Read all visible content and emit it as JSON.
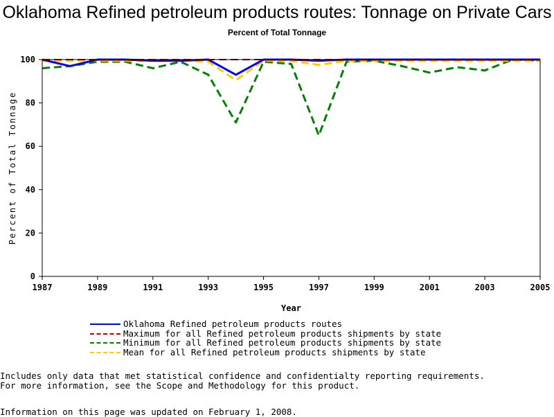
{
  "chart_data": {
    "type": "line",
    "title": "Oklahoma Refined petroleum products routes: Tonnage on Private Cars",
    "subtitle": "Percent of Total Tonnage",
    "xlabel": "Year",
    "ylabel": "Percent of Total Tonnage",
    "xlim": [
      1987,
      2005
    ],
    "ylim": [
      0,
      100
    ],
    "x_ticks": [
      "1987",
      "1989",
      "1991",
      "1993",
      "1995",
      "1997",
      "1999",
      "2001",
      "2003",
      "2005"
    ],
    "y_ticks": [
      "0",
      "20",
      "40",
      "60",
      "80",
      "100"
    ],
    "grid": false,
    "legend_position": "bottom",
    "x": [
      1987,
      1988,
      1989,
      1990,
      1991,
      1992,
      1993,
      1994,
      1995,
      1996,
      1997,
      1998,
      1999,
      2000,
      2001,
      2002,
      2003,
      2004,
      2005
    ],
    "series": [
      {
        "name": "Oklahoma Refined petroleum products routes",
        "color": "#0000ff",
        "dash": "solid",
        "values": [
          100,
          97,
          100,
          100,
          99.5,
          99.5,
          100,
          93,
          100,
          100,
          99.5,
          100,
          100,
          100,
          100,
          100,
          100,
          100,
          100
        ]
      },
      {
        "name": "Maximum for all Refined petroleum products shipments by state",
        "color": "#cc0000",
        "dash": "dashed",
        "values": [
          100,
          100,
          100,
          100,
          100,
          100,
          100,
          100,
          100,
          100,
          100,
          100,
          100,
          100,
          100,
          100,
          100,
          100,
          100
        ]
      },
      {
        "name": "Minimum for all Refined petroleum products shipments by state",
        "color": "#008000",
        "dash": "dashed",
        "values": [
          96,
          97,
          99,
          99,
          96,
          99,
          93,
          71,
          99,
          98,
          65,
          99,
          99.5,
          97,
          94,
          96.5,
          95,
          100,
          99.5
        ]
      },
      {
        "name": "Mean for all Refined petroleum products shipments by state",
        "color": "#ffcc00",
        "dash": "dashed",
        "values": [
          99.5,
          99.5,
          99.5,
          99.5,
          99.5,
          99.5,
          99,
          90.5,
          99.5,
          99.5,
          97.5,
          99.5,
          99.5,
          99.5,
          99.5,
          99.5,
          99.5,
          99.5,
          99.5
        ]
      }
    ]
  },
  "notes": {
    "line1": "Includes only data that met statistical confidence and confidentialty reporting requirements.",
    "line2": "For more information, see the Scope and Methodology for this product.",
    "updated": "Information on this page was updated on February 1, 2008."
  }
}
